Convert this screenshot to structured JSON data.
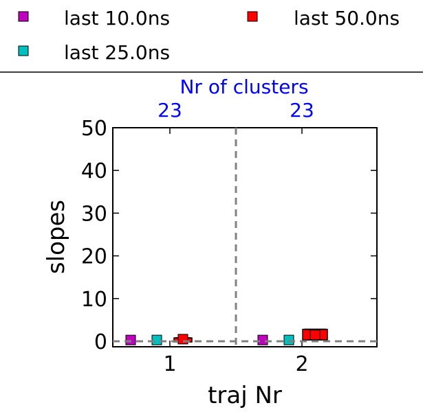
{
  "chart_data": {
    "type": "bar",
    "xlabel": "traj Nr",
    "ylabel": "slopes",
    "ylim": [
      0,
      50
    ],
    "yticks": [
      "0",
      "10",
      "20",
      "30",
      "40",
      "50"
    ],
    "categories": [
      "1",
      "2"
    ],
    "top_title": "Nr of clusters",
    "top_labels": [
      "23",
      "23"
    ],
    "legend_position": "top, above plot",
    "grid": false,
    "series": [
      {
        "name": "last 10.0ns",
        "color": "#bf00bf",
        "values": [
          0.3,
          0.3
        ]
      },
      {
        "name": "last 25.0ns",
        "color": "#00bfbf",
        "values": [
          0.3,
          0.3
        ]
      },
      {
        "name": "last 50.0ns",
        "color": "#ff0000",
        "values": [
          0.5,
          1.5
        ],
        "ranges": [
          [
            0.2,
            0.8
          ],
          [
            0.3,
            2.8
          ]
        ]
      }
    ],
    "reference_line_y": 0,
    "colors": {
      "top_axis_text": "#0000ff",
      "guide_lines": "#808080"
    }
  }
}
